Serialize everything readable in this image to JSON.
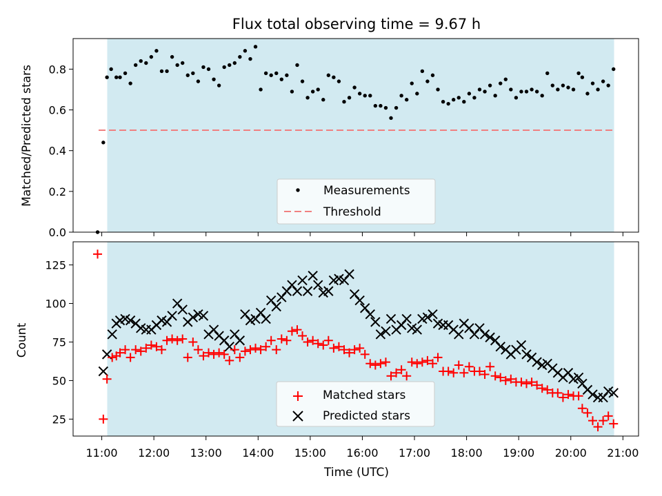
{
  "title": "Flux total observing time = 9.67 h",
  "colors": {
    "span": "#add8e6",
    "threshold": "#f08080",
    "matched": "#ff0000",
    "predicted": "#000000",
    "points": "#000000"
  },
  "chart_data": [
    {
      "type": "scatter",
      "title": "Flux total observing time = 9.67 h",
      "xlabel": "",
      "ylabel": "Matched/Predicted stars",
      "ylim": [
        0.0,
        0.95
      ],
      "xlim_hours": [
        10.45,
        21.3
      ],
      "shaded_span_hours": [
        11.1,
        20.8
      ],
      "yticks": [
        0.0,
        0.2,
        0.4,
        0.6,
        0.8
      ],
      "ytick_labels": [
        "0.0",
        "0.2",
        "0.4",
        "0.6",
        "0.8"
      ],
      "legend": {
        "placement": "lower-center",
        "entries": [
          "Measurements",
          "Threshold"
        ]
      },
      "threshold": 0.5,
      "x_hours": [
        10.92,
        11.03,
        11.1,
        11.18,
        11.28,
        11.35,
        11.45,
        11.55,
        11.65,
        11.75,
        11.85,
        11.95,
        12.05,
        12.15,
        12.25,
        12.35,
        12.45,
        12.55,
        12.65,
        12.75,
        12.85,
        12.95,
        13.05,
        13.15,
        13.25,
        13.35,
        13.45,
        13.55,
        13.65,
        13.75,
        13.85,
        13.95,
        14.05,
        14.15,
        14.25,
        14.35,
        14.45,
        14.55,
        14.65,
        14.75,
        14.85,
        14.95,
        15.05,
        15.15,
        15.25,
        15.35,
        15.45,
        15.55,
        15.65,
        15.75,
        15.85,
        15.95,
        16.05,
        16.15,
        16.25,
        16.35,
        16.45,
        16.55,
        16.65,
        16.75,
        16.85,
        16.95,
        17.05,
        17.15,
        17.25,
        17.35,
        17.45,
        17.55,
        17.65,
        17.75,
        17.85,
        17.95,
        18.05,
        18.15,
        18.25,
        18.35,
        18.45,
        18.55,
        18.65,
        18.75,
        18.85,
        18.95,
        19.05,
        19.15,
        19.25,
        19.35,
        19.45,
        19.55,
        19.65,
        19.75,
        19.85,
        19.95,
        20.05,
        20.15,
        20.22,
        20.32,
        20.42,
        20.52,
        20.62,
        20.72,
        20.82
      ],
      "values": [
        0.0,
        0.44,
        0.76,
        0.8,
        0.76,
        0.76,
        0.78,
        0.73,
        0.82,
        0.84,
        0.83,
        0.86,
        0.89,
        0.79,
        0.79,
        0.86,
        0.82,
        0.83,
        0.77,
        0.78,
        0.74,
        0.81,
        0.8,
        0.75,
        0.72,
        0.81,
        0.82,
        0.83,
        0.86,
        0.89,
        0.85,
        0.91,
        0.7,
        0.78,
        0.77,
        0.78,
        0.75,
        0.77,
        0.69,
        0.82,
        0.74,
        0.66,
        0.69,
        0.7,
        0.65,
        0.77,
        0.76,
        0.74,
        0.64,
        0.66,
        0.71,
        0.68,
        0.67,
        0.67,
        0.62,
        0.62,
        0.61,
        0.56,
        0.61,
        0.67,
        0.65,
        0.73,
        0.68,
        0.79,
        0.74,
        0.77,
        0.7,
        0.64,
        0.63,
        0.65,
        0.66,
        0.64,
        0.68,
        0.66,
        0.7,
        0.69,
        0.72,
        0.67,
        0.73,
        0.75,
        0.7,
        0.66,
        0.69,
        0.69,
        0.7,
        0.69,
        0.67,
        0.78,
        0.72,
        0.7,
        0.72,
        0.71,
        0.7,
        0.78,
        0.76,
        0.68,
        0.73,
        0.7,
        0.74,
        0.72,
        0.8
      ]
    },
    {
      "type": "scatter",
      "xlabel": "Time (UTC)",
      "ylabel": "Count",
      "ylim": [
        14,
        140
      ],
      "xlim_hours": [
        10.45,
        21.3
      ],
      "shaded_span_hours": [
        11.1,
        20.8
      ],
      "xticks_hours": [
        11,
        12,
        13,
        14,
        15,
        16,
        17,
        18,
        19,
        20,
        21
      ],
      "xtick_labels": [
        "11:00",
        "12:00",
        "13:00",
        "14:00",
        "15:00",
        "16:00",
        "17:00",
        "18:00",
        "19:00",
        "20:00",
        "21:00"
      ],
      "yticks": [
        25,
        50,
        75,
        100,
        125
      ],
      "ytick_labels": [
        "25",
        "50",
        "75",
        "100",
        "125"
      ],
      "legend": {
        "placement": "lower-center",
        "entries": [
          "Matched stars",
          "Predicted stars"
        ]
      },
      "series": [
        {
          "name": "Matched stars",
          "marker": "+",
          "x_hours": [
            10.92,
            11.03,
            11.1,
            11.2,
            11.28,
            11.35,
            11.45,
            11.55,
            11.65,
            11.75,
            11.85,
            11.95,
            12.05,
            12.15,
            12.25,
            12.35,
            12.45,
            12.55,
            12.65,
            12.75,
            12.85,
            12.95,
            13.05,
            13.15,
            13.25,
            13.35,
            13.45,
            13.55,
            13.65,
            13.75,
            13.85,
            13.95,
            14.05,
            14.15,
            14.25,
            14.35,
            14.45,
            14.55,
            14.65,
            14.75,
            14.85,
            14.95,
            15.05,
            15.15,
            15.25,
            15.35,
            15.45,
            15.55,
            15.65,
            15.75,
            15.85,
            15.95,
            16.05,
            16.15,
            16.25,
            16.35,
            16.45,
            16.55,
            16.65,
            16.75,
            16.85,
            16.95,
            17.05,
            17.15,
            17.25,
            17.35,
            17.45,
            17.55,
            17.65,
            17.75,
            17.85,
            17.95,
            18.05,
            18.15,
            18.25,
            18.35,
            18.45,
            18.55,
            18.65,
            18.75,
            18.85,
            18.95,
            19.05,
            19.15,
            19.25,
            19.35,
            19.45,
            19.55,
            19.65,
            19.75,
            19.85,
            19.95,
            20.05,
            20.15,
            20.22,
            20.32,
            20.42,
            20.52,
            20.62,
            20.72,
            20.82
          ],
          "values": [
            132,
            25,
            51,
            65,
            66,
            68,
            70,
            65,
            70,
            69,
            71,
            73,
            72,
            70,
            76,
            77,
            76,
            77,
            65,
            75,
            70,
            66,
            68,
            67,
            68,
            67,
            63,
            70,
            65,
            69,
            70,
            71,
            70,
            72,
            76,
            70,
            77,
            76,
            82,
            83,
            79,
            75,
            76,
            74,
            73,
            76,
            71,
            72,
            70,
            68,
            70,
            71,
            67,
            61,
            60,
            61,
            62,
            53,
            55,
            57,
            53,
            62,
            61,
            62,
            63,
            61,
            65,
            56,
            56,
            55,
            60,
            55,
            59,
            56,
            56,
            54,
            59,
            53,
            52,
            50,
            51,
            49,
            49,
            48,
            49,
            47,
            45,
            44,
            42,
            42,
            39,
            41,
            40,
            40,
            32,
            29,
            24,
            20,
            24,
            27,
            22
          ]
        },
        {
          "name": "Predicted stars",
          "marker": "x",
          "x_hours": [
            11.03,
            11.1,
            11.2,
            11.28,
            11.35,
            11.45,
            11.55,
            11.65,
            11.75,
            11.85,
            11.95,
            12.05,
            12.15,
            12.25,
            12.35,
            12.45,
            12.55,
            12.65,
            12.75,
            12.85,
            12.95,
            13.05,
            13.15,
            13.25,
            13.35,
            13.45,
            13.55,
            13.65,
            13.75,
            13.85,
            13.95,
            14.05,
            14.15,
            14.25,
            14.35,
            14.45,
            14.55,
            14.65,
            14.75,
            14.85,
            14.95,
            15.05,
            15.15,
            15.25,
            15.35,
            15.45,
            15.55,
            15.65,
            15.75,
            15.85,
            15.95,
            16.05,
            16.15,
            16.25,
            16.35,
            16.45,
            16.55,
            16.65,
            16.75,
            16.85,
            16.95,
            17.05,
            17.15,
            17.25,
            17.35,
            17.45,
            17.55,
            17.65,
            17.75,
            17.85,
            17.95,
            18.05,
            18.15,
            18.25,
            18.35,
            18.45,
            18.55,
            18.65,
            18.75,
            18.85,
            18.95,
            19.05,
            19.15,
            19.25,
            19.35,
            19.45,
            19.55,
            19.65,
            19.75,
            19.85,
            19.95,
            20.05,
            20.15,
            20.22,
            20.32,
            20.42,
            20.52,
            20.62,
            20.72,
            20.82
          ],
          "values": [
            56,
            67,
            80,
            87,
            89,
            90,
            89,
            87,
            84,
            83,
            83,
            86,
            89,
            88,
            92,
            100,
            96,
            88,
            91,
            93,
            92,
            80,
            83,
            79,
            76,
            72,
            80,
            76,
            93,
            89,
            90,
            94,
            90,
            102,
            98,
            104,
            108,
            112,
            108,
            115,
            108,
            118,
            112,
            107,
            108,
            115,
            116,
            115,
            119,
            106,
            102,
            97,
            93,
            88,
            80,
            82,
            90,
            83,
            86,
            90,
            84,
            83,
            90,
            91,
            93,
            87,
            86,
            86,
            83,
            80,
            87,
            84,
            80,
            84,
            80,
            78,
            76,
            72,
            70,
            67,
            70,
            73,
            67,
            65,
            62,
            60,
            61,
            58,
            55,
            52,
            55,
            51,
            52,
            48,
            44,
            41,
            39,
            39,
            43,
            42
          ]
        }
      ]
    }
  ]
}
